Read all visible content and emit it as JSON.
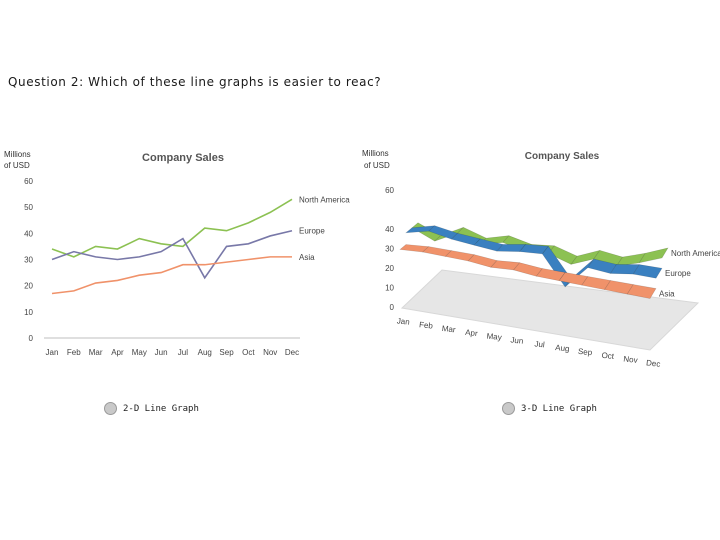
{
  "question": "Question 2: Which of these line graphs is easier to reac?",
  "options": [
    {
      "label": "2-D Line Graph"
    },
    {
      "label": "3-D Line Graph"
    }
  ],
  "colors": {
    "North America": "#8cc152",
    "Europe": "#7878a8",
    "Asia": "#f0926a",
    "europe_3d": "#3a80c0",
    "floor": "#e6e6e6"
  },
  "chart_data": [
    {
      "type": "line",
      "title": "Company Sales",
      "ylabel_lines": [
        "Millions",
        "of USD"
      ],
      "ylim": [
        0,
        60
      ],
      "yticks": [
        "0",
        "10",
        "20",
        "30",
        "40",
        "50",
        "60"
      ],
      "categories": [
        "Jan",
        "Feb",
        "Mar",
        "Apr",
        "May",
        "Jun",
        "Jul",
        "Aug",
        "Sep",
        "Oct",
        "Nov",
        "Dec"
      ],
      "series": [
        {
          "name": "North America",
          "values": [
            34,
            31,
            35,
            34,
            38,
            36,
            35,
            42,
            41,
            44,
            48,
            53
          ]
        },
        {
          "name": "Europe",
          "values": [
            30,
            33,
            31,
            30,
            31,
            33,
            38,
            23,
            35,
            36,
            39,
            41
          ]
        },
        {
          "name": "Asia",
          "values": [
            17,
            18,
            21,
            22,
            24,
            25,
            28,
            28,
            29,
            30,
            31,
            31
          ]
        }
      ],
      "legend": "right, at line ends"
    },
    {
      "type": "line",
      "title": "Company Sales",
      "ylabel_lines": [
        "Millions",
        "of USD"
      ],
      "ylim": [
        0,
        60
      ],
      "yticks": [
        "0",
        "10",
        "20",
        "30",
        "40",
        "60"
      ],
      "categories": [
        "Jan",
        "Feb",
        "Mar",
        "Apr",
        "May",
        "Jun",
        "Jul",
        "Aug",
        "Sep",
        "Oct",
        "Nov",
        "Dec"
      ],
      "series": [
        {
          "name": "North America",
          "values": [
            36,
            31,
            37,
            33,
            36,
            33,
            34,
            30,
            35,
            33,
            37,
            42
          ]
        },
        {
          "name": "Europe",
          "values": [
            36,
            39,
            37,
            36,
            35,
            37,
            38,
            22,
            35,
            34,
            36,
            36
          ]
        },
        {
          "name": "Asia",
          "values": [
            30,
            31,
            31,
            31,
            30,
            31,
            30,
            30,
            30,
            30,
            30,
            30
          ]
        }
      ],
      "legend": "right, at line ends",
      "style": "3-D ribbons"
    }
  ]
}
